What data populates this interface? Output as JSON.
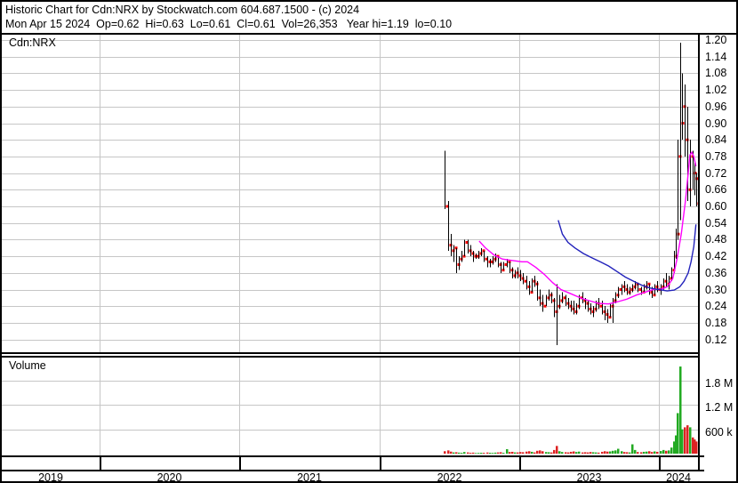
{
  "header": {
    "line1": "Historic Chart for Cdn:NRX by Stockwatch.com 604.687.1500 - (c) 2024",
    "line2": "Mon Apr 15 2024  Op=0.62  Hi=0.63  Lo=0.61  Cl=0.61  Vol=26,353   Year hi=1.19  lo=0.10"
  },
  "quote": {
    "symbol": "Cdn:NRX",
    "date": "Mon Apr 15 2024",
    "open": "0.62",
    "high": "0.63",
    "low": "0.61",
    "close": "0.61",
    "volume": "26,353",
    "year_high": "1.19",
    "year_low": "0.10"
  },
  "price_panel": {
    "symbol_label": "Cdn:NRX",
    "y_ticks": [
      "1.20",
      "1.14",
      "1.08",
      "1.02",
      "0.96",
      "0.90",
      "0.84",
      "0.78",
      "0.72",
      "0.66",
      "0.60",
      "0.54",
      "0.48",
      "0.42",
      "0.36",
      "0.30",
      "0.24",
      "0.18",
      "0.12"
    ]
  },
  "volume_panel": {
    "label": "Volume",
    "y_ticks": [
      {
        "label": "1.8 M",
        "value": 1800000
      },
      {
        "label": "1.2 M",
        "value": 1200000
      },
      {
        "label": "600 k",
        "value": 600000
      }
    ]
  },
  "x_axis": {
    "years": [
      "2019",
      "2020",
      "2021",
      "2022",
      "2023",
      "2024"
    ]
  },
  "chart_data": {
    "type": "candlestick",
    "title": "Historic Chart for Cdn:NRX",
    "price_axis": {
      "min": 0.12,
      "max": 1.2,
      "step": 0.06
    },
    "volume_axis": {
      "max_tick": 1800000,
      "tick_step": 600000
    },
    "x_axis_years": [
      2019,
      2020,
      2021,
      2022,
      2023,
      2024
    ],
    "grid": true,
    "colors": {
      "bar": "#000000",
      "close_dot": "#ff0000",
      "ma_short": "#ff00ff",
      "ma_long": "#2222bb",
      "vol_up": "#22aa22",
      "vol_down": "#dd2222",
      "gridline": "#c6c6c6"
    },
    "bars_format": "[decimal_year, high, low, close, volume, up(1)/down(0)]",
    "bars": [
      [
        2022.47,
        0.8,
        0.59,
        0.6,
        60000,
        0
      ],
      [
        2022.49,
        0.62,
        0.44,
        0.46,
        80000,
        0
      ],
      [
        2022.51,
        0.5,
        0.42,
        0.44,
        50000,
        0
      ],
      [
        2022.53,
        0.46,
        0.4,
        0.45,
        30000,
        1
      ],
      [
        2022.55,
        0.45,
        0.36,
        0.39,
        35000,
        0
      ],
      [
        2022.57,
        0.42,
        0.37,
        0.41,
        25000,
        1
      ],
      [
        2022.59,
        0.44,
        0.4,
        0.42,
        20000,
        1
      ],
      [
        2022.61,
        0.48,
        0.42,
        0.47,
        40000,
        1
      ],
      [
        2022.63,
        0.48,
        0.43,
        0.44,
        30000,
        0
      ],
      [
        2022.65,
        0.46,
        0.42,
        0.43,
        20000,
        0
      ],
      [
        2022.67,
        0.44,
        0.4,
        0.42,
        25000,
        0
      ],
      [
        2022.69,
        0.43,
        0.41,
        0.42,
        15000,
        1
      ],
      [
        2022.71,
        0.44,
        0.41,
        0.43,
        18000,
        1
      ],
      [
        2022.73,
        0.45,
        0.42,
        0.44,
        22000,
        1
      ],
      [
        2022.75,
        0.44,
        0.4,
        0.41,
        20000,
        0
      ],
      [
        2022.77,
        0.42,
        0.38,
        0.4,
        28000,
        0
      ],
      [
        2022.79,
        0.41,
        0.38,
        0.4,
        22000,
        1
      ],
      [
        2022.81,
        0.42,
        0.39,
        0.41,
        18000,
        1
      ],
      [
        2022.83,
        0.43,
        0.4,
        0.42,
        25000,
        1
      ],
      [
        2022.85,
        0.42,
        0.38,
        0.39,
        30000,
        0
      ],
      [
        2022.87,
        0.4,
        0.36,
        0.37,
        35000,
        0
      ],
      [
        2022.89,
        0.4,
        0.37,
        0.39,
        20000,
        1
      ],
      [
        2022.91,
        0.41,
        0.38,
        0.4,
        110000,
        1
      ],
      [
        2022.93,
        0.4,
        0.36,
        0.37,
        40000,
        0
      ],
      [
        2022.95,
        0.38,
        0.34,
        0.35,
        45000,
        0
      ],
      [
        2022.97,
        0.37,
        0.34,
        0.36,
        30000,
        1
      ],
      [
        2022.99,
        0.38,
        0.34,
        0.35,
        30000,
        0
      ],
      [
        2023.01,
        0.37,
        0.33,
        0.34,
        40000,
        0
      ],
      [
        2023.03,
        0.36,
        0.32,
        0.33,
        35000,
        0
      ],
      [
        2023.05,
        0.35,
        0.3,
        0.31,
        50000,
        0
      ],
      [
        2023.07,
        0.33,
        0.28,
        0.29,
        60000,
        0
      ],
      [
        2023.09,
        0.34,
        0.29,
        0.33,
        45000,
        1
      ],
      [
        2023.11,
        0.35,
        0.31,
        0.32,
        30000,
        0
      ],
      [
        2023.13,
        0.33,
        0.26,
        0.27,
        70000,
        0
      ],
      [
        2023.15,
        0.3,
        0.24,
        0.25,
        80000,
        0
      ],
      [
        2023.17,
        0.28,
        0.22,
        0.24,
        60000,
        0
      ],
      [
        2023.19,
        0.28,
        0.24,
        0.27,
        40000,
        1
      ],
      [
        2023.21,
        0.3,
        0.26,
        0.28,
        35000,
        1
      ],
      [
        2023.23,
        0.29,
        0.25,
        0.26,
        30000,
        0
      ],
      [
        2023.25,
        0.27,
        0.2,
        0.22,
        90000,
        0
      ],
      [
        2023.27,
        0.32,
        0.1,
        0.24,
        190000,
        0
      ],
      [
        2023.29,
        0.28,
        0.23,
        0.26,
        60000,
        1
      ],
      [
        2023.31,
        0.29,
        0.25,
        0.27,
        40000,
        1
      ],
      [
        2023.33,
        0.28,
        0.24,
        0.25,
        35000,
        0
      ],
      [
        2023.35,
        0.27,
        0.23,
        0.24,
        30000,
        0
      ],
      [
        2023.37,
        0.26,
        0.22,
        0.23,
        45000,
        0
      ],
      [
        2023.39,
        0.26,
        0.21,
        0.22,
        55000,
        0
      ],
      [
        2023.41,
        0.25,
        0.21,
        0.24,
        40000,
        1
      ],
      [
        2023.43,
        0.28,
        0.23,
        0.27,
        50000,
        1
      ],
      [
        2023.45,
        0.29,
        0.25,
        0.26,
        30000,
        0
      ],
      [
        2023.47,
        0.27,
        0.23,
        0.25,
        35000,
        0
      ],
      [
        2023.49,
        0.26,
        0.22,
        0.23,
        30000,
        0
      ],
      [
        2023.51,
        0.25,
        0.21,
        0.22,
        40000,
        0
      ],
      [
        2023.53,
        0.24,
        0.2,
        0.23,
        35000,
        1
      ],
      [
        2023.55,
        0.26,
        0.22,
        0.25,
        30000,
        1
      ],
      [
        2023.57,
        0.27,
        0.23,
        0.24,
        25000,
        0
      ],
      [
        2023.59,
        0.26,
        0.21,
        0.22,
        45000,
        0
      ],
      [
        2023.61,
        0.24,
        0.19,
        0.21,
        60000,
        0
      ],
      [
        2023.63,
        0.23,
        0.18,
        0.2,
        50000,
        0
      ],
      [
        2023.65,
        0.25,
        0.2,
        0.24,
        55000,
        1
      ],
      [
        2023.67,
        0.27,
        0.18,
        0.26,
        70000,
        1
      ],
      [
        2023.69,
        0.29,
        0.25,
        0.28,
        80000,
        1
      ],
      [
        2023.71,
        0.31,
        0.27,
        0.3,
        120000,
        1
      ],
      [
        2023.73,
        0.32,
        0.28,
        0.31,
        60000,
        1
      ],
      [
        2023.75,
        0.33,
        0.29,
        0.3,
        40000,
        0
      ],
      [
        2023.77,
        0.32,
        0.28,
        0.29,
        35000,
        0
      ],
      [
        2023.79,
        0.31,
        0.28,
        0.3,
        30000,
        1
      ],
      [
        2023.81,
        0.32,
        0.29,
        0.31,
        230000,
        1
      ],
      [
        2023.83,
        0.33,
        0.3,
        0.32,
        90000,
        1
      ],
      [
        2023.85,
        0.32,
        0.29,
        0.3,
        40000,
        0
      ],
      [
        2023.87,
        0.31,
        0.28,
        0.29,
        35000,
        0
      ],
      [
        2023.89,
        0.32,
        0.29,
        0.31,
        45000,
        1
      ],
      [
        2023.91,
        0.33,
        0.3,
        0.32,
        50000,
        1
      ],
      [
        2023.93,
        0.32,
        0.28,
        0.29,
        60000,
        0
      ],
      [
        2023.95,
        0.31,
        0.27,
        0.28,
        40000,
        0
      ],
      [
        2023.97,
        0.32,
        0.28,
        0.31,
        55000,
        1
      ],
      [
        2023.99,
        0.33,
        0.29,
        0.3,
        45000,
        0
      ],
      [
        2024.01,
        0.32,
        0.28,
        0.31,
        65000,
        1
      ],
      [
        2024.03,
        0.34,
        0.3,
        0.33,
        90000,
        1
      ],
      [
        2024.05,
        0.36,
        0.31,
        0.32,
        70000,
        0
      ],
      [
        2024.07,
        0.35,
        0.3,
        0.34,
        80000,
        1
      ],
      [
        2024.09,
        0.38,
        0.33,
        0.37,
        150000,
        1
      ],
      [
        2024.105,
        0.44,
        0.36,
        0.42,
        300000,
        1
      ],
      [
        2024.12,
        0.52,
        0.41,
        0.5,
        450000,
        1
      ],
      [
        2024.135,
        0.84,
        0.48,
        0.78,
        1000000,
        1
      ],
      [
        2024.15,
        1.19,
        0.55,
        0.9,
        2150000,
        1
      ],
      [
        2024.168,
        1.08,
        0.84,
        0.96,
        600000,
        1
      ],
      [
        2024.186,
        1.04,
        0.78,
        0.84,
        650000,
        0
      ],
      [
        2024.204,
        0.96,
        0.62,
        0.66,
        700000,
        0
      ],
      [
        2024.222,
        0.84,
        0.6,
        0.78,
        650000,
        1
      ],
      [
        2024.24,
        0.8,
        0.66,
        0.72,
        400000,
        0
      ],
      [
        2024.253,
        0.76,
        0.64,
        0.7,
        350000,
        0
      ],
      [
        2024.265,
        0.72,
        0.6,
        0.61,
        300000,
        0
      ]
    ],
    "ma_short": {
      "name": "short moving average",
      "points": [
        [
          2022.715,
          0.475
        ],
        [
          2022.76,
          0.45
        ],
        [
          2022.82,
          0.425
        ],
        [
          2022.88,
          0.41
        ],
        [
          2022.95,
          0.405
        ],
        [
          2023.02,
          0.4
        ],
        [
          2023.06,
          0.4
        ],
        [
          2023.12,
          0.38
        ],
        [
          2023.18,
          0.355
        ],
        [
          2023.24,
          0.325
        ],
        [
          2023.3,
          0.3
        ],
        [
          2023.37,
          0.285
        ],
        [
          2023.44,
          0.27
        ],
        [
          2023.5,
          0.26
        ],
        [
          2023.57,
          0.25
        ],
        [
          2023.64,
          0.248
        ],
        [
          2023.7,
          0.255
        ],
        [
          2023.77,
          0.265
        ],
        [
          2023.84,
          0.28
        ],
        [
          2023.9,
          0.29
        ],
        [
          2023.96,
          0.3
        ],
        [
          2024.02,
          0.302
        ],
        [
          2024.06,
          0.31
        ],
        [
          2024.1,
          0.34
        ],
        [
          2024.13,
          0.41
        ],
        [
          2024.16,
          0.5
        ],
        [
          2024.19,
          0.62
        ],
        [
          2024.21,
          0.72
        ],
        [
          2024.222,
          0.785
        ],
        [
          2024.235,
          0.795
        ],
        [
          2024.25,
          0.78
        ],
        [
          2024.265,
          0.745
        ]
      ]
    },
    "ma_long": {
      "name": "long moving average",
      "points": [
        [
          2023.28,
          0.55
        ],
        [
          2023.31,
          0.5
        ],
        [
          2023.35,
          0.47
        ],
        [
          2023.4,
          0.45
        ],
        [
          2023.46,
          0.43
        ],
        [
          2023.52,
          0.415
        ],
        [
          2023.58,
          0.4
        ],
        [
          2023.64,
          0.385
        ],
        [
          2023.7,
          0.365
        ],
        [
          2023.76,
          0.345
        ],
        [
          2023.82,
          0.33
        ],
        [
          2023.88,
          0.315
        ],
        [
          2023.94,
          0.305
        ],
        [
          2024.0,
          0.3
        ],
        [
          2024.06,
          0.295
        ],
        [
          2024.11,
          0.298
        ],
        [
          2024.15,
          0.31
        ],
        [
          2024.18,
          0.33
        ],
        [
          2024.21,
          0.36
        ],
        [
          2024.23,
          0.4
        ],
        [
          2024.25,
          0.455
        ],
        [
          2024.265,
          0.535
        ]
      ]
    }
  }
}
